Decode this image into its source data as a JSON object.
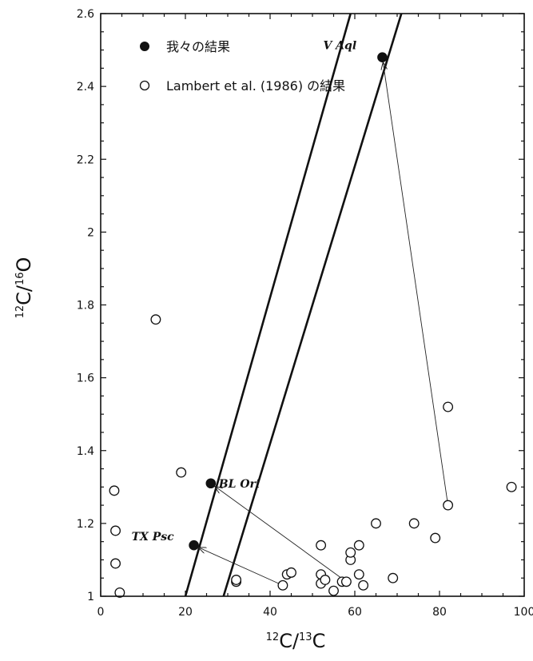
{
  "chart_data": {
    "type": "scatter",
    "xlabel_base": "C/",
    "xlabel_base2": "C",
    "xlabel_sup1": "12",
    "xlabel_sup2": "13",
    "ylabel_base": "C/",
    "ylabel_base2": "O",
    "ylabel_sup1": "12",
    "ylabel_sup2": "16",
    "xlim": [
      0,
      100
    ],
    "ylim": [
      1,
      2.6
    ],
    "x_ticks": [
      0,
      20,
      40,
      60,
      80,
      100
    ],
    "x_tick_labels": [
      "0",
      "20",
      "40",
      "60",
      "80",
      "100"
    ],
    "y_ticks": [
      1,
      1.2,
      1.4,
      1.6,
      1.8,
      2,
      2.2,
      2.4,
      2.6
    ],
    "y_tick_labels": [
      "1",
      "1.2",
      "1.4",
      "1.6",
      "1.8",
      "2",
      "2.2",
      "2.4",
      "2.6"
    ],
    "x_minor_step": 5,
    "y_minor_step": 0.05,
    "grid": false,
    "legend_placement": "top-left",
    "series": [
      {
        "name": "我々の結果",
        "marker": "filled-circle",
        "points": [
          {
            "x": 22,
            "y": 1.14,
            "label": "TX Psc"
          },
          {
            "x": 26,
            "y": 1.31,
            "label": "BL Ori"
          },
          {
            "x": 66.5,
            "y": 2.48,
            "label": "V Aql"
          }
        ]
      },
      {
        "name": "Lambert et al. (1986) の結果",
        "marker": "open-circle",
        "points": [
          {
            "x": 4.5,
            "y": 1.01
          },
          {
            "x": 3.5,
            "y": 1.09
          },
          {
            "x": 3.5,
            "y": 1.18
          },
          {
            "x": 3.2,
            "y": 1.29
          },
          {
            "x": 13,
            "y": 1.76
          },
          {
            "x": 19,
            "y": 1.34
          },
          {
            "x": 32,
            "y": 1.04
          },
          {
            "x": 32,
            "y": 1.045
          },
          {
            "x": 43,
            "y": 1.03
          },
          {
            "x": 44,
            "y": 1.06
          },
          {
            "x": 45,
            "y": 1.065
          },
          {
            "x": 52,
            "y": 1.035
          },
          {
            "x": 52,
            "y": 1.06
          },
          {
            "x": 52,
            "y": 1.14
          },
          {
            "x": 53,
            "y": 1.045
          },
          {
            "x": 55,
            "y": 1.015
          },
          {
            "x": 57,
            "y": 1.04
          },
          {
            "x": 58,
            "y": 1.04
          },
          {
            "x": 59,
            "y": 1.1
          },
          {
            "x": 59,
            "y": 1.12
          },
          {
            "x": 61,
            "y": 1.06
          },
          {
            "x": 61,
            "y": 1.14
          },
          {
            "x": 62,
            "y": 1.03
          },
          {
            "x": 65,
            "y": 1.2
          },
          {
            "x": 69,
            "y": 1.05
          },
          {
            "x": 74,
            "y": 1.2
          },
          {
            "x": 79,
            "y": 1.16
          },
          {
            "x": 82,
            "y": 1.25
          },
          {
            "x": 82,
            "y": 1.52
          },
          {
            "x": 97,
            "y": 1.3
          }
        ]
      }
    ],
    "lines": [
      {
        "from": [
          20,
          1.0
        ],
        "to": [
          59,
          2.6
        ]
      },
      {
        "from": [
          29,
          1.0
        ],
        "to": [
          71,
          2.6
        ]
      }
    ],
    "arrows": [
      {
        "from": [
          43,
          1.03
        ],
        "to": [
          22,
          1.14
        ]
      },
      {
        "from": [
          58,
          1.04
        ],
        "to": [
          26,
          1.31
        ]
      },
      {
        "from": [
          82,
          1.25
        ],
        "to": [
          66.5,
          2.48
        ]
      }
    ]
  }
}
